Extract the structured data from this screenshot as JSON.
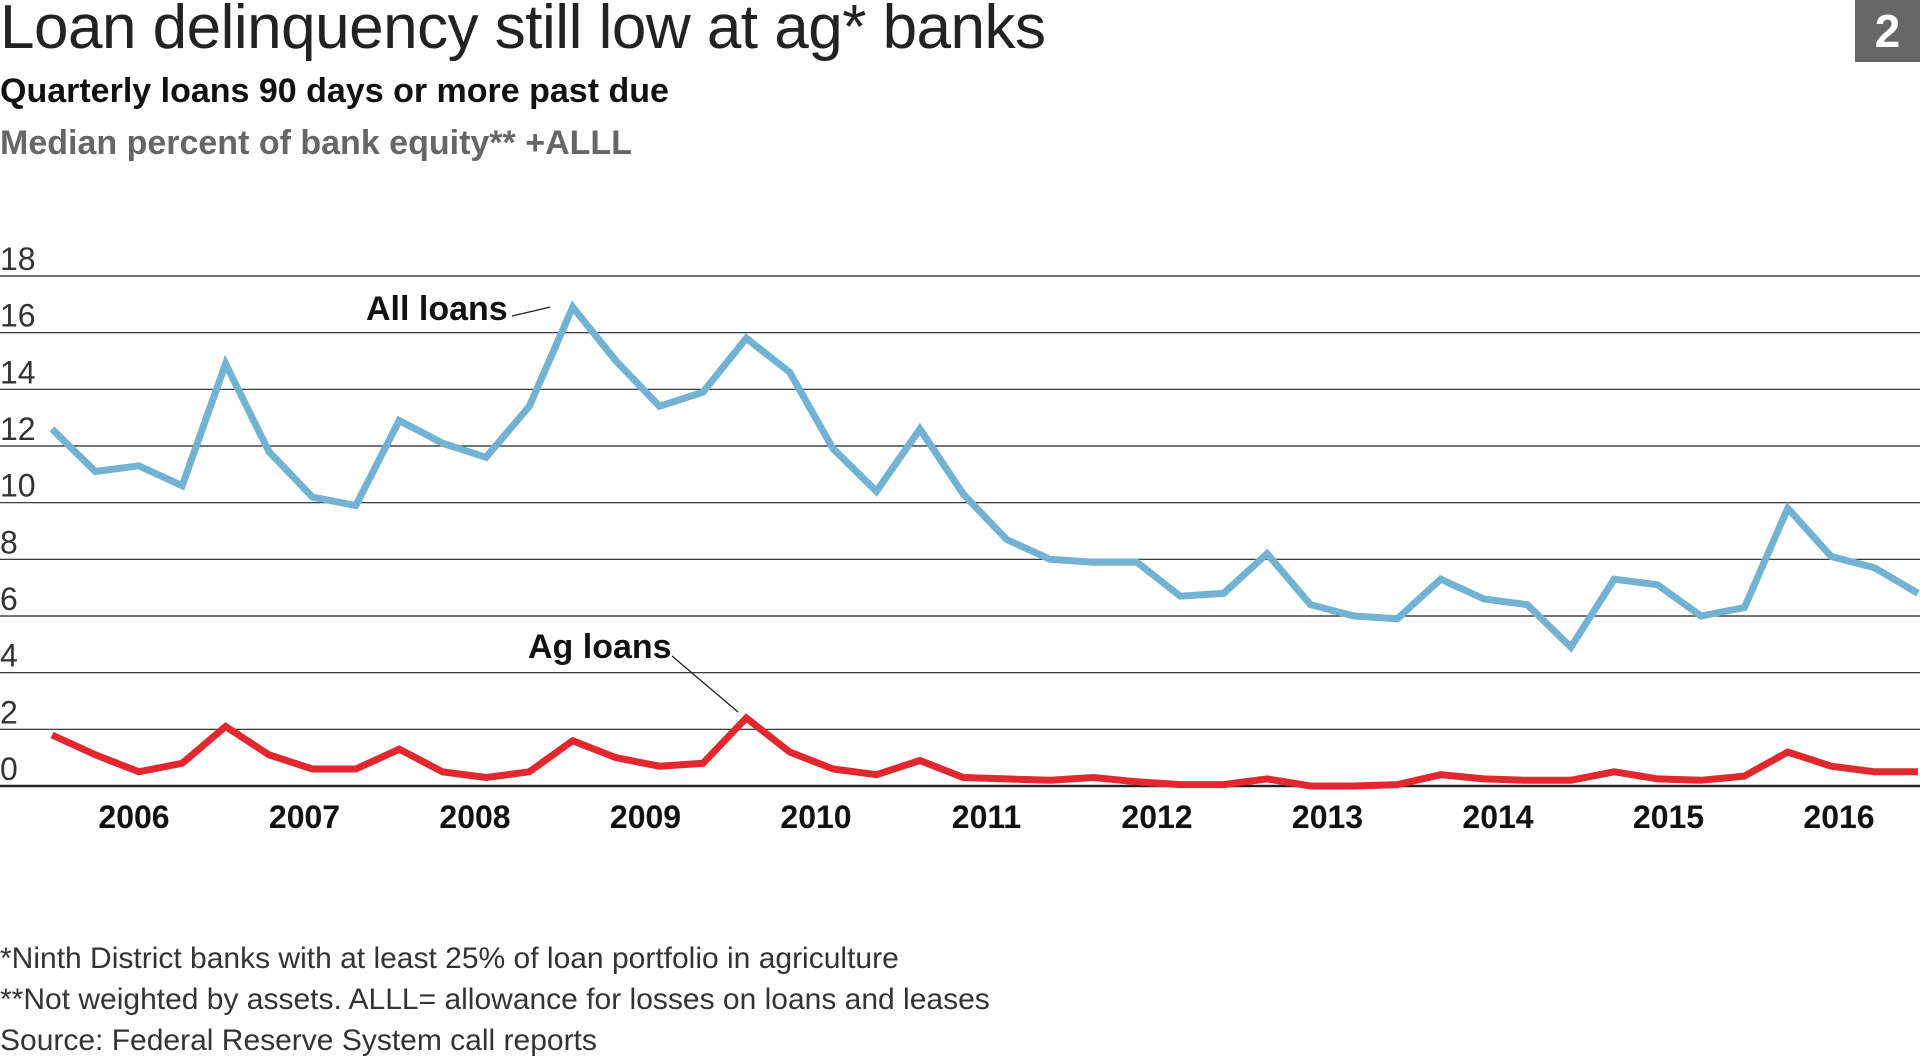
{
  "header": {
    "title": "Loan delinquency still low at ag* banks",
    "badge": "2",
    "subtitle": "Quarterly loans 90 days or more past due",
    "subtitle2": "Median percent of bank equity** +ALLL"
  },
  "footnotes": [
    "*Ninth District banks with at least 25% of loan portfolio in agriculture",
    "**Not weighted by assets. ALLL= allowance for losses on loans and leases",
    "Source: Federal Reserve System call reports"
  ],
  "colors": {
    "all_loans": "#72b3d3",
    "ag_loans": "#e2282e",
    "grid": "#222222"
  },
  "chart_data": {
    "type": "line",
    "title": "Loan delinquency still low at ag* banks",
    "xlabel": "",
    "ylabel": "",
    "ylim": [
      0,
      18
    ],
    "yticks": [
      "0",
      "2",
      "4",
      "6",
      "8",
      "10",
      "12",
      "14",
      "16",
      "18"
    ],
    "x_labels": [
      "2006",
      "2007",
      "2008",
      "2009",
      "2010",
      "2011",
      "2012",
      "2013",
      "2014",
      "2015",
      "2016"
    ],
    "grid": true,
    "legend": "inline labels",
    "series": [
      {
        "name": "All loans",
        "values": [
          12.6,
          11.1,
          11.3,
          10.6,
          14.9,
          11.8,
          10.2,
          9.9,
          12.9,
          12.1,
          11.6,
          13.4,
          16.9,
          15.0,
          13.4,
          13.9,
          15.8,
          14.6,
          11.9,
          10.4,
          12.6,
          10.3,
          8.7,
          8.0,
          7.9,
          7.9,
          6.7,
          6.8,
          8.2,
          6.4,
          6.0,
          5.9,
          7.3,
          6.6,
          6.4,
          4.9,
          7.3,
          7.1,
          6.0,
          6.3,
          9.8,
          8.1,
          7.7,
          6.8
        ]
      },
      {
        "name": "Ag loans",
        "values": [
          1.8,
          1.1,
          0.5,
          0.8,
          2.1,
          1.1,
          0.6,
          0.6,
          1.3,
          0.5,
          0.3,
          0.5,
          1.6,
          1.0,
          0.7,
          0.8,
          2.4,
          1.2,
          0.6,
          0.4,
          0.9,
          0.3,
          0.25,
          0.2,
          0.3,
          0.15,
          0.05,
          0.05,
          0.25,
          0.0,
          0.0,
          0.05,
          0.4,
          0.25,
          0.2,
          0.2,
          0.5,
          0.25,
          0.2,
          0.35,
          1.2,
          0.7,
          0.5,
          0.5
        ]
      }
    ],
    "annotations": [
      {
        "text": "All loans",
        "series": "All loans",
        "point_index": 12
      },
      {
        "text": "Ag loans",
        "series": "Ag loans",
        "point_index": 16
      }
    ]
  }
}
